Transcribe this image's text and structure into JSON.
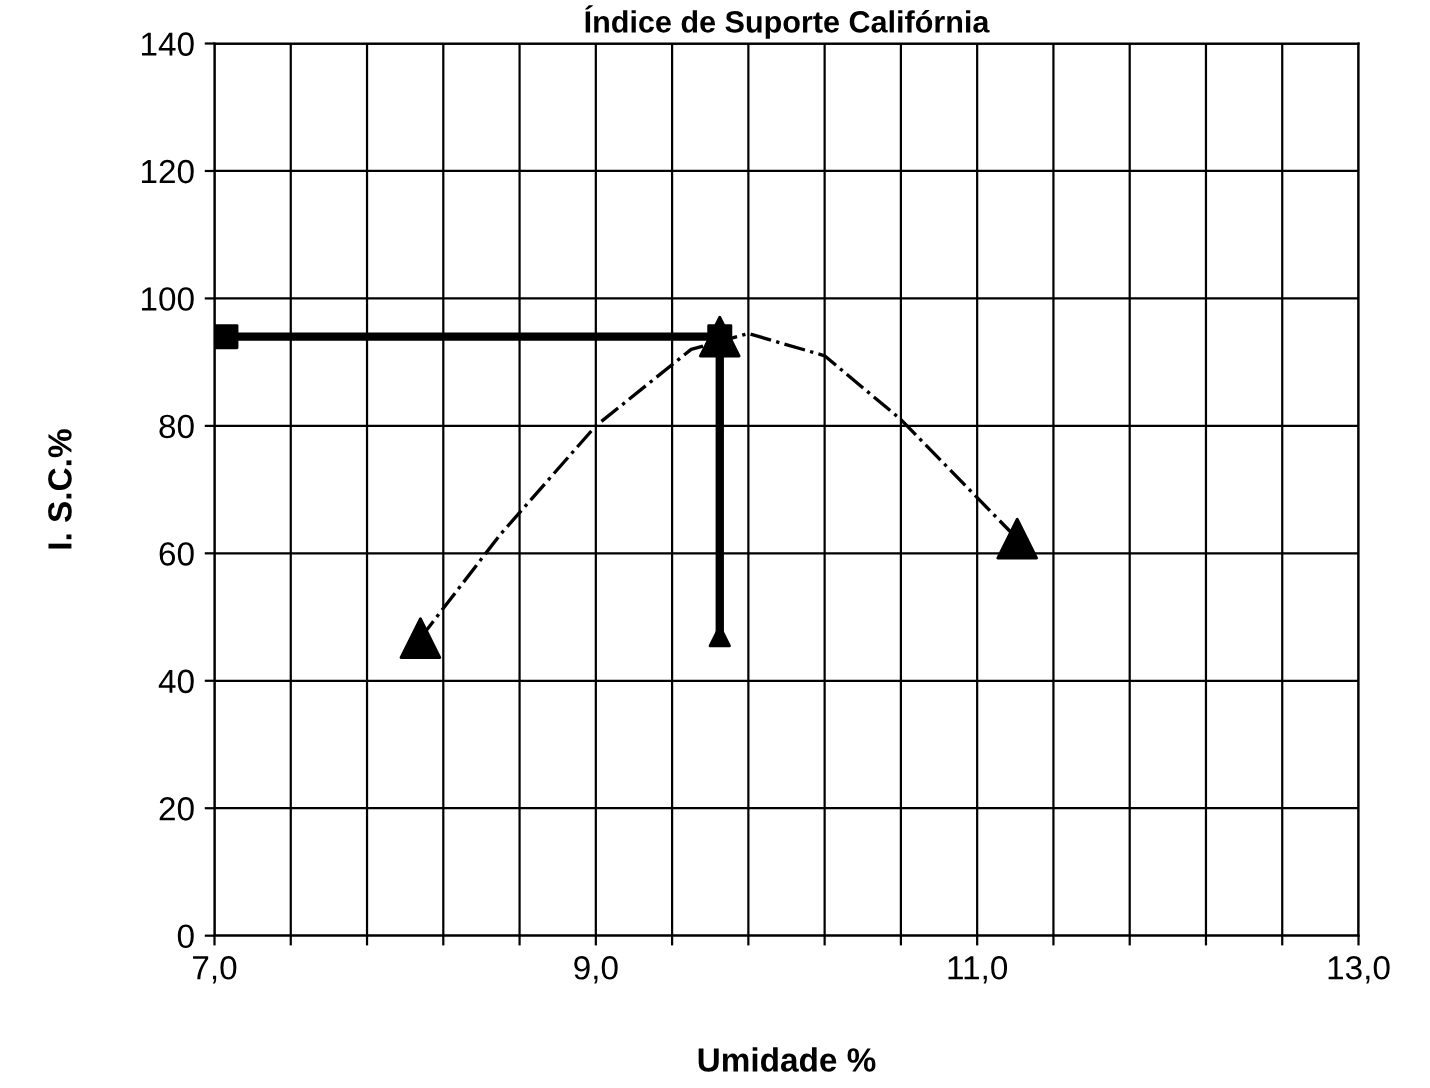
{
  "chart_data": {
    "type": "scatter",
    "title": "Índice de Suporte Califórnia",
    "xlabel": "Umidade %",
    "ylabel": "I. S.C.%",
    "xlim": [
      7.0,
      13.0
    ],
    "ylim": [
      0,
      140
    ],
    "xticks": [
      {
        "value": 7.0,
        "label": "7,0"
      },
      {
        "value": 7.4,
        "label": null
      },
      {
        "value": 7.8,
        "label": null
      },
      {
        "value": 8.2,
        "label": null
      },
      {
        "value": 8.6,
        "label": null
      },
      {
        "value": 9.0,
        "label": "9,0"
      },
      {
        "value": 9.4,
        "label": null
      },
      {
        "value": 9.8,
        "label": null
      },
      {
        "value": 10.2,
        "label": null
      },
      {
        "value": 10.6,
        "label": null
      },
      {
        "value": 11.0,
        "label": "11,0"
      },
      {
        "value": 11.4,
        "label": null
      },
      {
        "value": 11.8,
        "label": null
      },
      {
        "value": 12.2,
        "label": null
      },
      {
        "value": 12.6,
        "label": null
      },
      {
        "value": 13.0,
        "label": "13,0"
      }
    ],
    "yticks": [
      0,
      20,
      40,
      60,
      80,
      100,
      120,
      140
    ],
    "grid": true,
    "series": [
      {
        "type": "line",
        "color": "#000000",
        "line_style": "dashdot",
        "marker": "none",
        "x": [
          8.08,
          8.5,
          9.0,
          9.5,
          9.8,
          10.2,
          10.6,
          11.21
        ],
        "values": [
          46.7,
          63,
          80,
          92,
          94.5,
          91,
          81,
          62.3
        ]
      },
      {
        "color": "#000000",
        "marker": "triangle",
        "x": [
          8.08,
          9.65,
          11.21
        ],
        "values": [
          46.7,
          94,
          62.3
        ]
      },
      {
        "type": "line",
        "color": "#000000",
        "line_style": "solid",
        "marker": "none",
        "x": [
          7.06,
          9.65,
          9.65
        ],
        "values": [
          94,
          94,
          47
        ]
      },
      {
        "color": "#000000",
        "marker": "square",
        "x": [
          7.06,
          9.65
        ],
        "values": [
          94,
          94
        ]
      },
      {
        "color": "#000000",
        "marker": "triangle",
        "x": [
          9.65
        ],
        "values": [
          47
        ]
      }
    ]
  }
}
